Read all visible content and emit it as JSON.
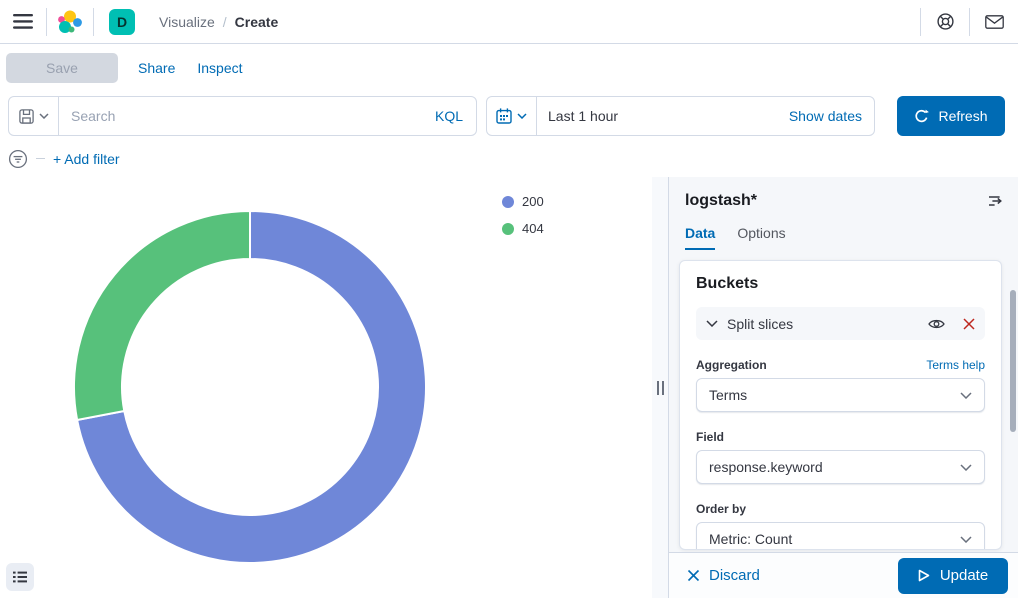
{
  "header": {
    "breadcrumb": {
      "section": "Visualize",
      "separator": "/",
      "current": "Create"
    },
    "space_initial": "D"
  },
  "toolbar": {
    "save_label": "Save",
    "share_label": "Share",
    "inspect_label": "Inspect"
  },
  "query_bar": {
    "search_placeholder": "Search",
    "language_badge": "KQL",
    "time_value": "Last 1 hour",
    "show_dates_label": "Show dates",
    "refresh_label": "Refresh"
  },
  "filter_bar": {
    "add_filter_label": "+ Add filter"
  },
  "chart_data": {
    "type": "pie",
    "subtype": "donut",
    "title": "",
    "legend_position": "top-right",
    "start_angle_deg": 0,
    "direction": "clockwise",
    "inner_radius_ratio": 0.73,
    "value_unit": "percent",
    "slices": [
      {
        "label": "200",
        "value": 72,
        "color": "#6F87D8"
      },
      {
        "label": "404",
        "value": 28,
        "color": "#57C17B"
      }
    ]
  },
  "sidebar": {
    "index_pattern": "logstash*",
    "tabs": {
      "data": "Data",
      "options": "Options"
    },
    "panel": {
      "title": "Buckets",
      "bucket_label": "Split slices",
      "aggregation_label": "Aggregation",
      "aggregation_help": "Terms help",
      "aggregation_value": "Terms",
      "field_label": "Field",
      "field_value": "response.keyword",
      "order_by_label": "Order by",
      "order_by_value": "Metric: Count"
    },
    "footer": {
      "discard_label": "Discard",
      "update_label": "Update"
    }
  },
  "colors": {
    "primary": "#006BB4",
    "danger": "#BD271E",
    "space_avatar_bg": "#00BFB3",
    "border": "#D3DAE6",
    "panel_bg": "#F5F7FA"
  }
}
